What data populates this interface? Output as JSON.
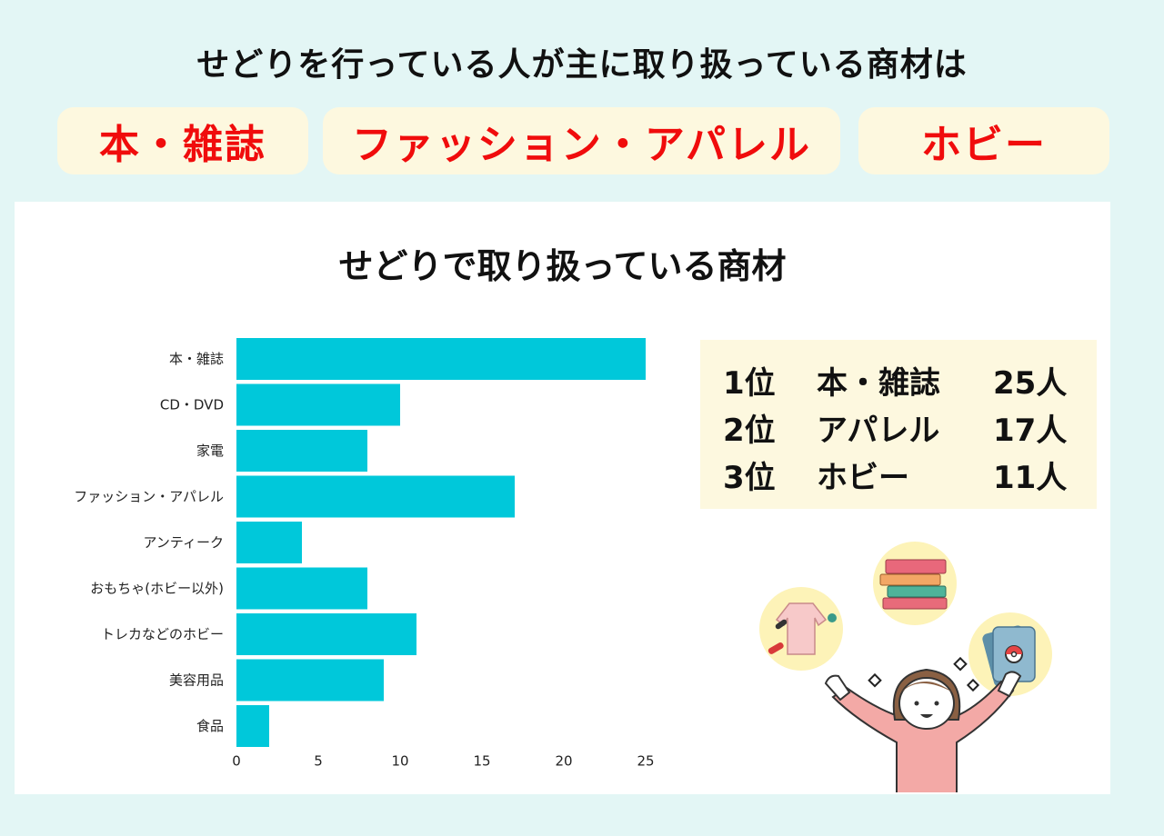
{
  "headline": "せどりを行っている人が主に取り扱っている商材は",
  "top_items": [
    "本・雑誌",
    "ファッション・アパレル",
    "ホビー"
  ],
  "colors": {
    "accent_red": "#f00c0c",
    "bar": "#00c8da",
    "cream": "#fdf8df",
    "background": "#e3f6f5"
  },
  "ranking": [
    {
      "rank": "1位",
      "item": "本・雑誌",
      "count": "25人"
    },
    {
      "rank": "2位",
      "item": "アパレル",
      "count": "17人"
    },
    {
      "rank": "3位",
      "item": "ホビー",
      "count": "11人"
    }
  ],
  "chart_data": {
    "type": "bar",
    "orientation": "horizontal",
    "title": "せどりで取り扱っている商材",
    "categories": [
      "本・雑誌",
      "CD・DVD",
      "家電",
      "ファッション・アパレル",
      "アンティーク",
      "おもちゃ(ホビー以外)",
      "トレカなどのホビー",
      "美容用品",
      "食品"
    ],
    "values": [
      25,
      10,
      8,
      17,
      4,
      8,
      11,
      9,
      2
    ],
    "xticks": [
      0,
      5,
      10,
      15,
      20,
      25
    ],
    "xlim": [
      0,
      25
    ],
    "grid": false,
    "xlabel": "",
    "ylabel": ""
  }
}
